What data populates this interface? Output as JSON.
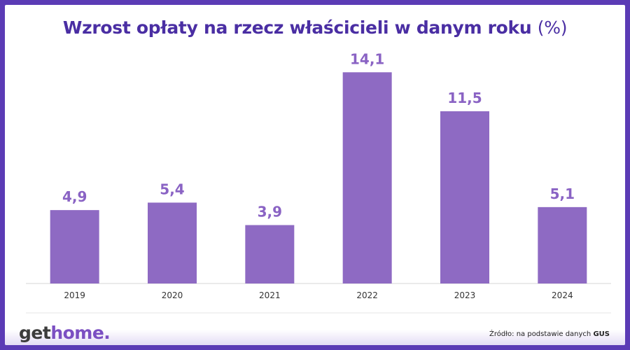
{
  "header": {
    "title": "Wzrost opłaty na rzecz właścicieli w danym roku",
    "title_unit": "(%)"
  },
  "chart_data": {
    "type": "bar",
    "title": "Wzrost opłaty na rzecz właścicieli w danym roku (%)",
    "categories": [
      "2019",
      "2020",
      "2021",
      "2022",
      "2023",
      "2024"
    ],
    "values": [
      4.9,
      5.4,
      3.9,
      14.1,
      11.5,
      5.1
    ],
    "value_labels": [
      "4,9",
      "5,4",
      "3,9",
      "14,1",
      "11,5",
      "5,1"
    ],
    "ylim": [
      0,
      16
    ],
    "xlabel": "",
    "ylabel": "",
    "grid": false,
    "bar_color": "#8e6ac3",
    "label_color": "#8a63c4"
  },
  "footer": {
    "logo_get": "get",
    "logo_home": "home.",
    "source_prefix": "Źródło: na podstawie danych",
    "source_name": "GUS"
  },
  "colors": {
    "border": "#5b3bb5",
    "title": "#4a2ea3"
  }
}
